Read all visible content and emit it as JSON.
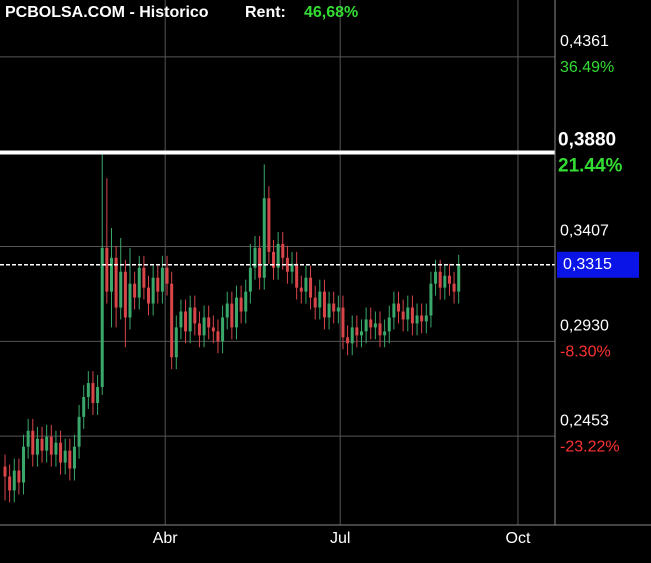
{
  "chart_data": {
    "type": "candlestick",
    "title": "PCBOLSA.COM - Historico",
    "return_label": "Rent:",
    "return_value": {
      "value": 46.68,
      "label": "46,68%"
    },
    "up_color": "#3aa86b",
    "down_color": "#d8464a",
    "grid": true,
    "x": [
      0,
      1,
      2,
      3,
      4,
      5,
      6,
      7,
      8,
      9,
      10,
      11,
      12,
      13,
      14,
      15,
      16,
      17,
      18,
      19,
      20,
      21,
      22,
      23,
      24,
      25,
      26,
      27,
      28,
      29,
      30,
      31,
      32,
      33,
      34,
      35,
      36,
      37,
      38,
      39,
      40,
      41,
      42,
      43,
      44,
      45,
      46,
      47,
      48,
      49,
      50,
      51,
      52,
      53,
      54,
      55,
      56,
      57,
      58,
      59,
      60,
      61,
      62,
      63,
      64,
      65,
      66,
      67,
      68,
      69,
      70,
      71,
      72,
      73,
      74,
      75,
      76,
      77,
      78,
      79,
      80,
      81,
      82,
      83,
      84,
      85,
      86,
      87,
      88,
      89,
      90,
      91,
      92,
      93,
      94,
      95,
      96,
      97,
      98
    ],
    "open": [
      0.23,
      0.225,
      0.218,
      0.228,
      0.222,
      0.24,
      0.248,
      0.236,
      0.244,
      0.238,
      0.245,
      0.236,
      0.242,
      0.232,
      0.238,
      0.229,
      0.24,
      0.255,
      0.265,
      0.272,
      0.262,
      0.27,
      0.34,
      0.318,
      0.335,
      0.31,
      0.328,
      0.305,
      0.322,
      0.315,
      0.33,
      0.32,
      0.312,
      0.325,
      0.318,
      0.33,
      0.322,
      0.285,
      0.3,
      0.308,
      0.298,
      0.31,
      0.302,
      0.296,
      0.305,
      0.3,
      0.298,
      0.293,
      0.305,
      0.312,
      0.3,
      0.315,
      0.308,
      0.318,
      0.33,
      0.34,
      0.325,
      0.365,
      0.338,
      0.33,
      0.342,
      0.335,
      0.328,
      0.332,
      0.32,
      0.318,
      0.325,
      0.315,
      0.31,
      0.318,
      0.305,
      0.312,
      0.308,
      0.31,
      0.295,
      0.292,
      0.3,
      0.296,
      0.298,
      0.304,
      0.3,
      0.302,
      0.296,
      0.298,
      0.305,
      0.312,
      0.308,
      0.304,
      0.31,
      0.302,
      0.306,
      0.303,
      0.306,
      0.322,
      0.328,
      0.32,
      0.326,
      0.322,
      0.318
    ],
    "high": [
      0.236,
      0.231,
      0.234,
      0.234,
      0.246,
      0.254,
      0.254,
      0.25,
      0.25,
      0.251,
      0.251,
      0.248,
      0.248,
      0.244,
      0.244,
      0.246,
      0.261,
      0.271,
      0.278,
      0.278,
      0.276,
      0.387,
      0.375,
      0.35,
      0.341,
      0.345,
      0.334,
      0.34,
      0.328,
      0.336,
      0.336,
      0.326,
      0.331,
      0.331,
      0.336,
      0.336,
      0.328,
      0.306,
      0.314,
      0.314,
      0.316,
      0.316,
      0.308,
      0.311,
      0.311,
      0.306,
      0.304,
      0.311,
      0.318,
      0.318,
      0.321,
      0.321,
      0.324,
      0.342,
      0.346,
      0.346,
      0.382,
      0.371,
      0.344,
      0.348,
      0.348,
      0.341,
      0.338,
      0.338,
      0.326,
      0.331,
      0.331,
      0.321,
      0.324,
      0.324,
      0.318,
      0.318,
      0.316,
      0.316,
      0.301,
      0.306,
      0.306,
      0.304,
      0.31,
      0.31,
      0.308,
      0.308,
      0.304,
      0.311,
      0.318,
      0.318,
      0.314,
      0.316,
      0.316,
      0.312,
      0.312,
      0.312,
      0.328,
      0.334,
      0.334,
      0.332,
      0.332,
      0.328,
      0.3365
    ],
    "low": [
      0.213,
      0.212,
      0.212,
      0.216,
      0.216,
      0.234,
      0.23,
      0.23,
      0.232,
      0.232,
      0.23,
      0.23,
      0.226,
      0.226,
      0.223,
      0.223,
      0.234,
      0.249,
      0.259,
      0.256,
      0.256,
      0.266,
      0.312,
      0.3,
      0.3,
      0.304,
      0.29,
      0.299,
      0.309,
      0.309,
      0.314,
      0.306,
      0.306,
      0.312,
      0.312,
      0.316,
      0.279,
      0.279,
      0.294,
      0.292,
      0.292,
      0.296,
      0.29,
      0.29,
      0.294,
      0.292,
      0.287,
      0.287,
      0.299,
      0.294,
      0.294,
      0.302,
      0.302,
      0.312,
      0.324,
      0.319,
      0.319,
      0.332,
      0.324,
      0.324,
      0.329,
      0.322,
      0.322,
      0.314,
      0.312,
      0.312,
      0.309,
      0.304,
      0.304,
      0.299,
      0.299,
      0.302,
      0.302,
      0.289,
      0.286,
      0.286,
      0.29,
      0.29,
      0.292,
      0.294,
      0.294,
      0.29,
      0.29,
      0.292,
      0.299,
      0.302,
      0.298,
      0.298,
      0.296,
      0.296,
      0.297,
      0.297,
      0.3,
      0.316,
      0.314,
      0.314,
      0.316,
      0.312,
      0.312
    ],
    "close": [
      0.225,
      0.218,
      0.228,
      0.222,
      0.24,
      0.248,
      0.236,
      0.244,
      0.238,
      0.245,
      0.236,
      0.242,
      0.232,
      0.238,
      0.229,
      0.24,
      0.255,
      0.265,
      0.272,
      0.262,
      0.27,
      0.34,
      0.318,
      0.335,
      0.31,
      0.328,
      0.305,
      0.322,
      0.315,
      0.33,
      0.32,
      0.312,
      0.325,
      0.318,
      0.33,
      0.322,
      0.285,
      0.3,
      0.308,
      0.298,
      0.31,
      0.302,
      0.296,
      0.305,
      0.3,
      0.298,
      0.293,
      0.305,
      0.312,
      0.3,
      0.315,
      0.308,
      0.318,
      0.33,
      0.34,
      0.325,
      0.365,
      0.338,
      0.33,
      0.342,
      0.335,
      0.328,
      0.332,
      0.32,
      0.318,
      0.325,
      0.315,
      0.31,
      0.318,
      0.305,
      0.312,
      0.308,
      0.31,
      0.295,
      0.292,
      0.3,
      0.296,
      0.298,
      0.304,
      0.3,
      0.302,
      0.296,
      0.298,
      0.305,
      0.312,
      0.308,
      0.304,
      0.31,
      0.302,
      0.306,
      0.303,
      0.306,
      0.322,
      0.328,
      0.32,
      0.326,
      0.322,
      0.318,
      0.3315
    ],
    "xlim": [
      -1.08,
      118.8
    ],
    "xticks": [
      {
        "value": 34.6,
        "label": "Abr"
      },
      {
        "value": 72.4,
        "label": "Jul"
      },
      {
        "value": 110.8,
        "label": "Oct"
      }
    ],
    "ylim": [
      0.2006,
      0.4647
    ],
    "yticks": [
      {
        "value": 0.4361,
        "label": "0,4361"
      },
      {
        "value": 0.3407,
        "label": "0,3407"
      },
      {
        "value": 0.293,
        "label": "0,2930"
      },
      {
        "value": 0.2453,
        "label": "0,2453"
      }
    ],
    "ytick_changes": [
      {
        "value": 36.49,
        "label": "36.49%"
      },
      null,
      {
        "value": -8.3,
        "label": "-8.30%"
      },
      {
        "value": -23.22,
        "label": "-23.22%"
      }
    ],
    "reference_line": {
      "value": 0.388,
      "label": "0,3880",
      "change": {
        "value": 21.44,
        "label": "21.44%"
      }
    },
    "last_price": {
      "value": 0.3315,
      "label": "0,3315",
      "color": "#0a14e6"
    }
  }
}
